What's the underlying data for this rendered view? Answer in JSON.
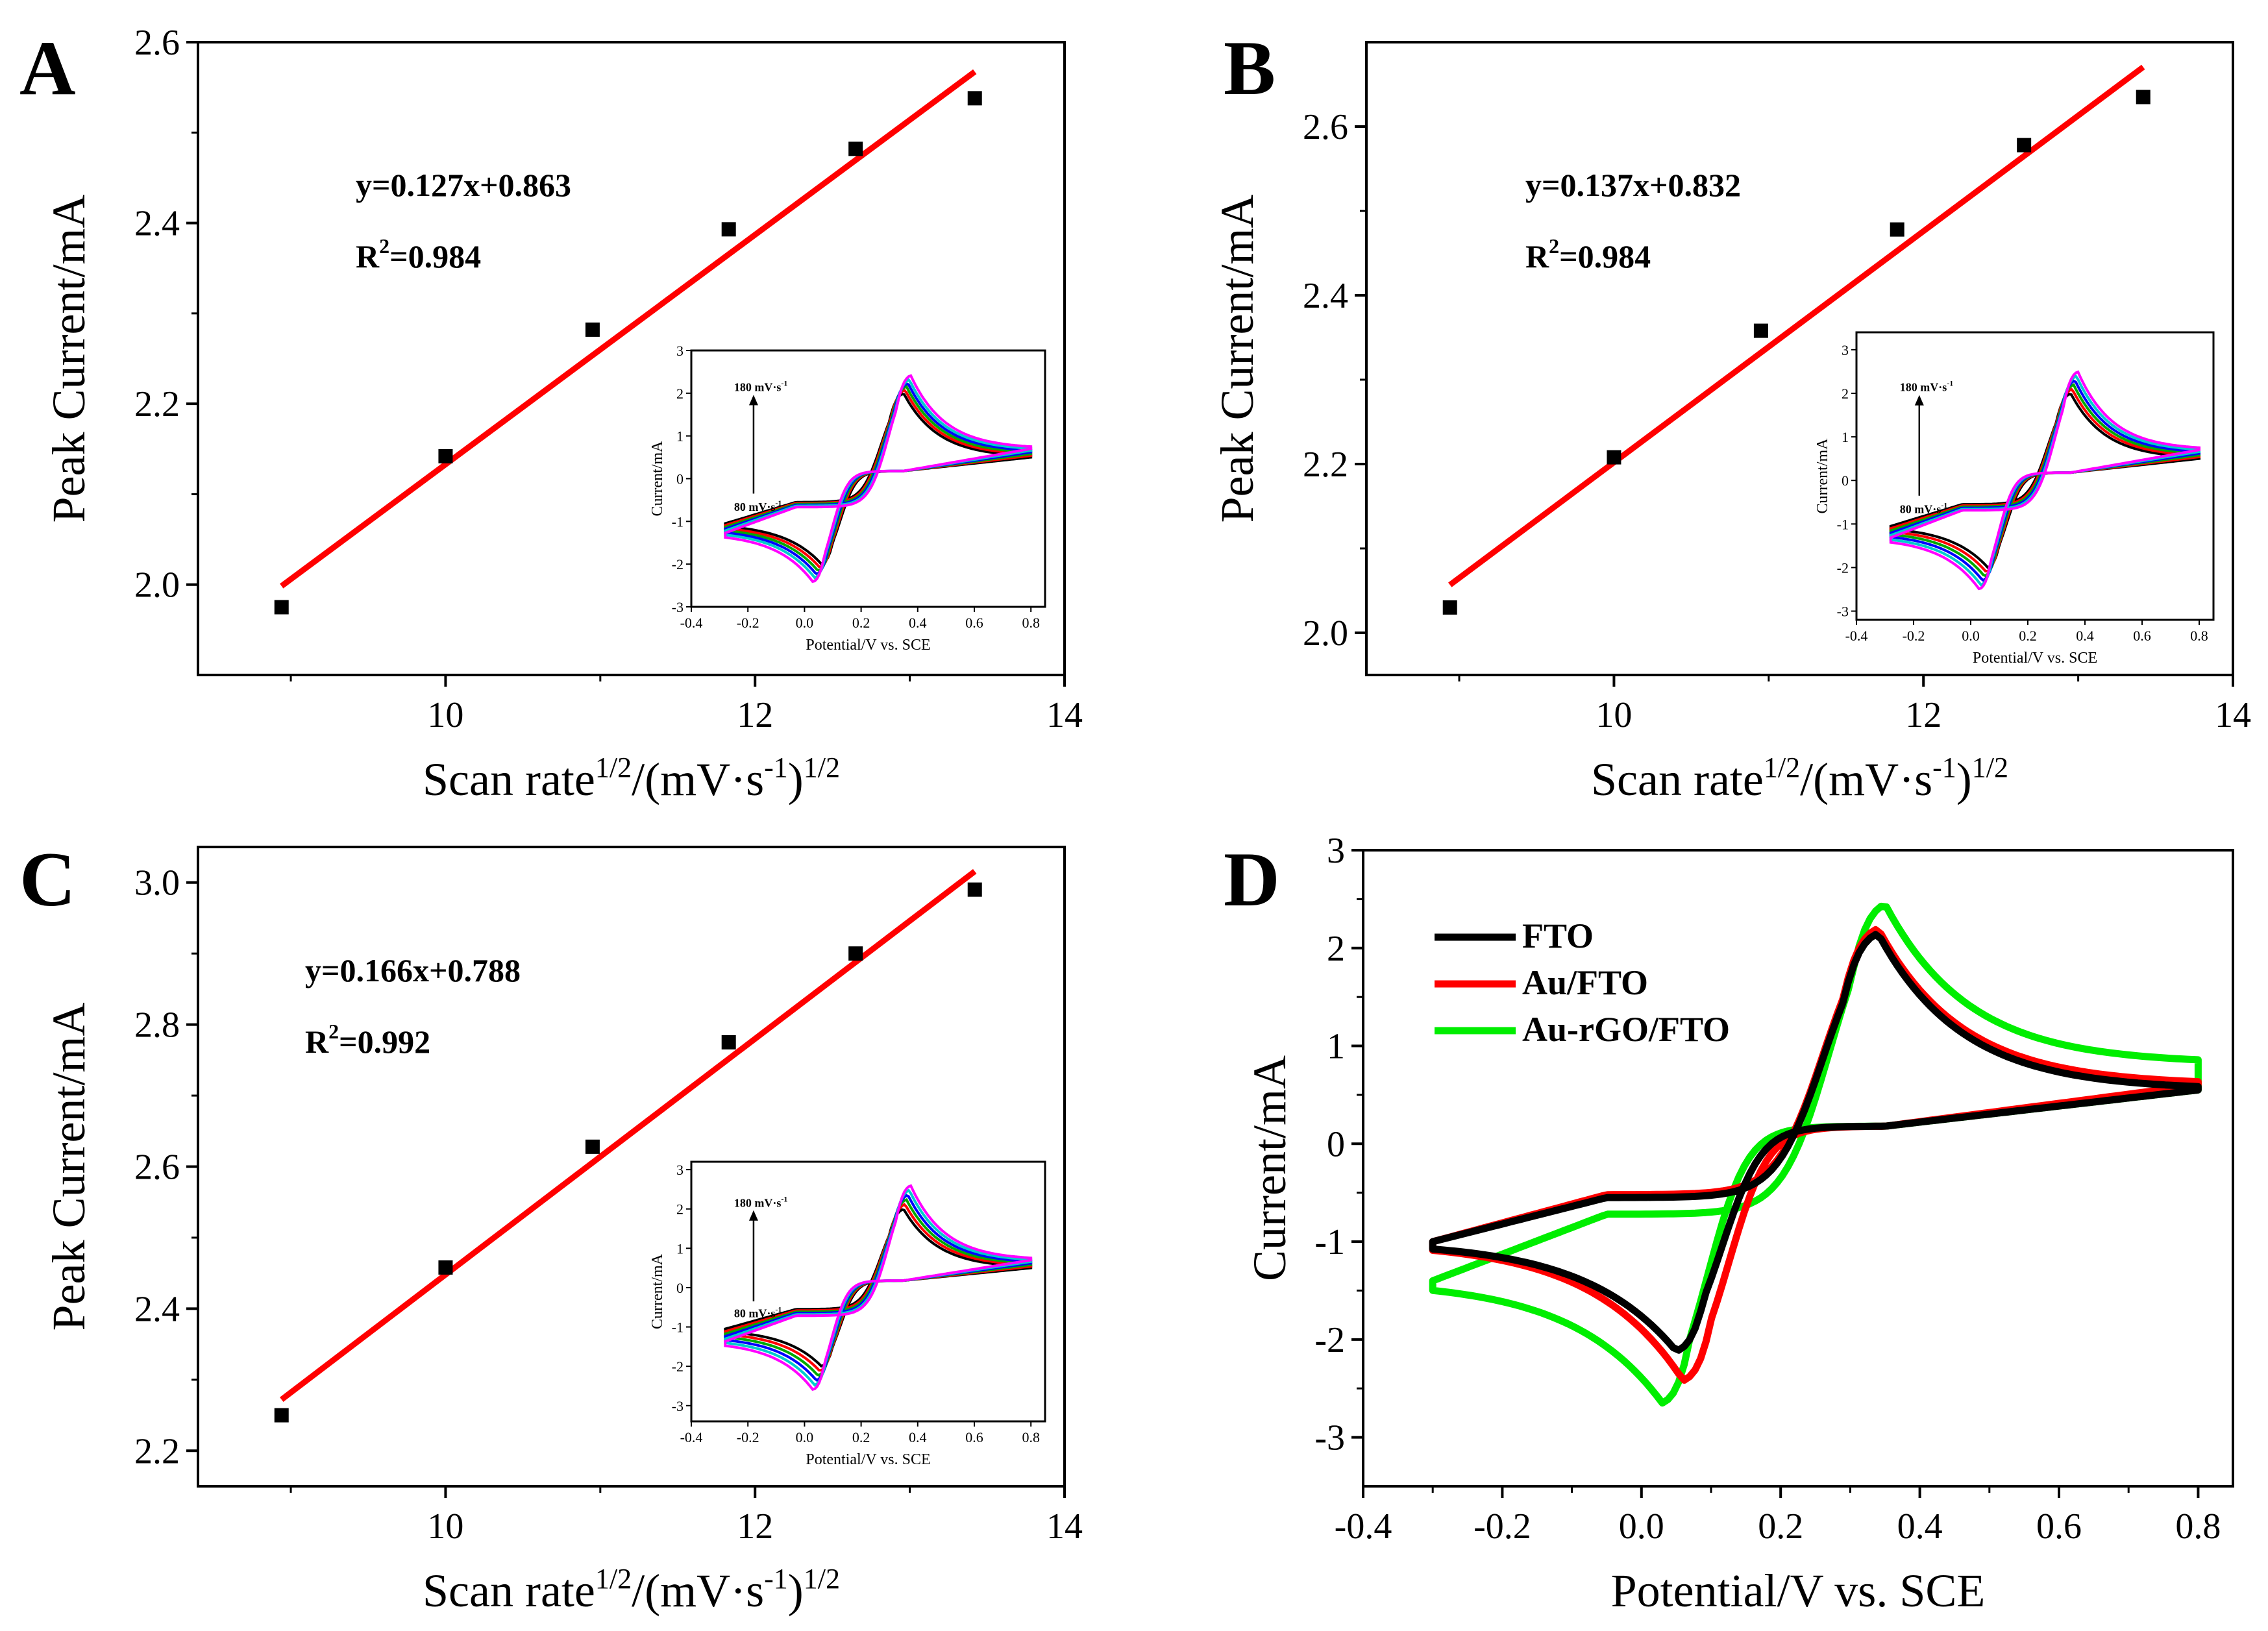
{
  "chart_data": [
    {
      "panel": "A",
      "type": "scatter",
      "title": "",
      "xlabel_base": "Scan rate",
      "xlabel_sup1": "1/2",
      "xlabel_mid": "/(mV·s",
      "xlabel_sup2": "-1",
      "xlabel_end": ")",
      "xlabel_sup3": "1/2",
      "ylabel": "Peak Current/mA",
      "xlim": [
        8.4,
        14
      ],
      "ylim": [
        1.9,
        2.6
      ],
      "xticks": [
        10,
        12,
        14
      ],
      "yticks": [
        2.0,
        2.2,
        2.4,
        2.6
      ],
      "ytick_labels": [
        "2.0",
        "2.2",
        "2.4",
        "2.6"
      ],
      "xtick_labels": [
        "10",
        "12",
        "14"
      ],
      "x": [
        8.94,
        10.0,
        10.95,
        11.83,
        12.65,
        13.42
      ],
      "y": [
        1.975,
        2.142,
        2.282,
        2.393,
        2.482,
        2.538
      ],
      "fit": {
        "slope": 0.127,
        "intercept": 0.863,
        "x_range": [
          8.94,
          13.42
        ]
      },
      "equation": "y=0.127x+0.863",
      "r2_base": "R",
      "r2_sup": "2",
      "r2_val": "=0.984",
      "inset": {
        "xlabel": "Potential/V vs. SCE",
        "ylabel": "Current/mA",
        "xticks": [
          -0.4,
          -0.2,
          0.0,
          0.2,
          0.4,
          0.6,
          0.8
        ],
        "xtick_labels": [
          "-0.4",
          "-0.2",
          "0.0",
          "0.2",
          "0.4",
          "0.6",
          "0.8"
        ],
        "yticks": [
          -3,
          -2,
          -1,
          0,
          1,
          2,
          3
        ],
        "ytick_labels": [
          "-3",
          "-2",
          "-1",
          "0",
          "1",
          "2",
          "3"
        ],
        "xlim": [
          -0.4,
          0.85
        ],
        "ylim": [
          -3,
          3
        ],
        "top_annotation": "180 mV·s",
        "top_annotation_sup": "-1",
        "bottom_annotation": "80 mV·s",
        "bottom_annotation_sup": "-1",
        "series_colors": [
          "#000000",
          "#ff0000",
          "#00aa00",
          "#0000ff",
          "#00cccc",
          "#ff00ff"
        ],
        "scale": [
          1.0,
          1.04,
          1.08,
          1.12,
          1.16,
          1.21
        ]
      }
    },
    {
      "panel": "B",
      "type": "scatter",
      "title": "",
      "xlabel_base": "Scan rate",
      "xlabel_sup1": "1/2",
      "xlabel_mid": "/(mV·s",
      "xlabel_sup2": "-1",
      "xlabel_end": ")",
      "xlabel_sup3": "1/2",
      "ylabel": "Peak Current/mA",
      "xlim": [
        8.4,
        14
      ],
      "ylim": [
        1.95,
        2.7
      ],
      "xticks": [
        10,
        12,
        14
      ],
      "yticks": [
        2.0,
        2.2,
        2.4,
        2.6
      ],
      "ytick_labels": [
        "2.0",
        "2.2",
        "2.4",
        "2.6"
      ],
      "xtick_labels": [
        "10",
        "12",
        "14"
      ],
      "x": [
        8.94,
        10.0,
        10.95,
        11.83,
        12.65,
        13.42
      ],
      "y": [
        2.03,
        2.208,
        2.358,
        2.478,
        2.578,
        2.635
      ],
      "fit": {
        "slope": 0.137,
        "intercept": 0.832,
        "x_range": [
          8.94,
          13.42
        ]
      },
      "equation": "y=0.137x+0.832",
      "r2_base": "R",
      "r2_sup": "2",
      "r2_val": "=0.984",
      "inset": {
        "xlabel": "Potential/V vs. SCE",
        "ylabel": "Current/mA",
        "xticks": [
          -0.4,
          -0.2,
          0.0,
          0.2,
          0.4,
          0.6,
          0.8
        ],
        "xtick_labels": [
          "-0.4",
          "-0.2",
          "0.0",
          "0.2",
          "0.4",
          "0.6",
          "0.8"
        ],
        "yticks": [
          -3,
          -2,
          -1,
          0,
          1,
          2,
          3
        ],
        "ytick_labels": [
          "-3",
          "-2",
          "-1",
          "0",
          "1",
          "2",
          "3"
        ],
        "xlim": [
          -0.4,
          0.85
        ],
        "ylim": [
          -3.2,
          3.4
        ],
        "top_annotation": "180 mV·s",
        "top_annotation_sup": "-1",
        "bottom_annotation": "80 mV·s",
        "bottom_annotation_sup": "-1",
        "series_colors": [
          "#000000",
          "#ff0000",
          "#00aa00",
          "#0000ff",
          "#00cccc",
          "#ff00ff"
        ],
        "scale": [
          1.0,
          1.05,
          1.1,
          1.15,
          1.2,
          1.25
        ]
      }
    },
    {
      "panel": "C",
      "type": "scatter",
      "title": "",
      "xlabel_base": "Scan rate",
      "xlabel_sup1": "1/2",
      "xlabel_mid": "/(mV·s",
      "xlabel_sup2": "-1",
      "xlabel_end": ")",
      "xlabel_sup3": "1/2",
      "ylabel": "Peak Current/mA",
      "xlim": [
        8.4,
        14
      ],
      "ylim": [
        2.15,
        3.05
      ],
      "xticks": [
        10,
        12,
        14
      ],
      "yticks": [
        2.2,
        2.4,
        2.6,
        2.8,
        3.0
      ],
      "ytick_labels": [
        "2.2",
        "2.4",
        "2.6",
        "2.8",
        "3.0"
      ],
      "xtick_labels": [
        "10",
        "12",
        "14"
      ],
      "x": [
        8.94,
        10.0,
        10.95,
        11.83,
        12.65,
        13.42
      ],
      "y": [
        2.25,
        2.458,
        2.628,
        2.775,
        2.9,
        2.99
      ],
      "fit": {
        "slope": 0.166,
        "intercept": 0.788,
        "x_range": [
          8.94,
          13.42
        ]
      },
      "equation": "y=0.166x+0.788",
      "r2_base": "R",
      "r2_sup": "2",
      "r2_val": "=0.992",
      "inset": {
        "xlabel": "Potential/V vs. SCE",
        "ylabel": "Current/mA",
        "xticks": [
          -0.4,
          -0.2,
          0.0,
          0.2,
          0.4,
          0.6,
          0.8
        ],
        "xtick_labels": [
          "-0.4",
          "-0.2",
          "0.0",
          "0.2",
          "0.4",
          "0.6",
          "0.8"
        ],
        "yticks": [
          -3,
          -2,
          -1,
          0,
          1,
          2,
          3
        ],
        "ytick_labels": [
          "-3",
          "-2",
          "-1",
          "0",
          "1",
          "2",
          "3"
        ],
        "xlim": [
          -0.4,
          0.85
        ],
        "ylim": [
          -3.4,
          3.2
        ],
        "top_annotation": "180 mV·s",
        "top_annotation_sup": "-1",
        "bottom_annotation": "80 mV·s",
        "bottom_annotation_sup": "-1",
        "series_colors": [
          "#000000",
          "#ff0000",
          "#00aa00",
          "#0000ff",
          "#00cccc",
          "#ff00ff"
        ],
        "scale": [
          1.0,
          1.06,
          1.12,
          1.18,
          1.24,
          1.3
        ]
      }
    },
    {
      "panel": "D",
      "type": "line",
      "title": "",
      "xlabel": "Potential/V vs. SCE",
      "ylabel": "Current/mA",
      "xlim": [
        -0.4,
        0.85
      ],
      "ylim": [
        -3.5,
        3
      ],
      "xticks": [
        -0.4,
        -0.2,
        0.0,
        0.2,
        0.4,
        0.6,
        0.8
      ],
      "xtick_labels": [
        "-0.4",
        "-0.2",
        "0.0",
        "0.2",
        "0.4",
        "0.6",
        "0.8"
      ],
      "yticks": [
        -3,
        -2,
        -1,
        0,
        1,
        2,
        3
      ],
      "ytick_labels": [
        "-3",
        "-2",
        "-1",
        "0",
        "1",
        "2",
        "3"
      ],
      "legend_position": "top-left",
      "series": [
        {
          "name": "FTO",
          "color": "#000000",
          "anodic_peak": [
            0.34,
            2.15
          ],
          "cathodic_peak": [
            0.05,
            -2.12
          ],
          "start": [
            -0.3,
            -1.0
          ],
          "end": [
            0.8,
            0.55
          ],
          "end_low": 0.55,
          "start_up": -0.55
        },
        {
          "name": "Au/FTO",
          "color": "#ff0000",
          "anodic_peak": [
            0.34,
            2.2
          ],
          "cathodic_peak": [
            0.06,
            -2.42
          ],
          "start": [
            -0.3,
            -1.0
          ],
          "end": [
            0.8,
            0.6
          ],
          "end_low": 0.6,
          "start_up": -0.52
        },
        {
          "name": "Au-rGO/FTO",
          "color": "#00ee00",
          "anodic_peak": [
            0.35,
            2.45
          ],
          "cathodic_peak": [
            0.03,
            -2.65
          ],
          "start": [
            -0.3,
            -1.4
          ],
          "end": [
            0.8,
            0.82
          ],
          "end_low": 0.55,
          "start_up": -0.72
        }
      ]
    }
  ]
}
